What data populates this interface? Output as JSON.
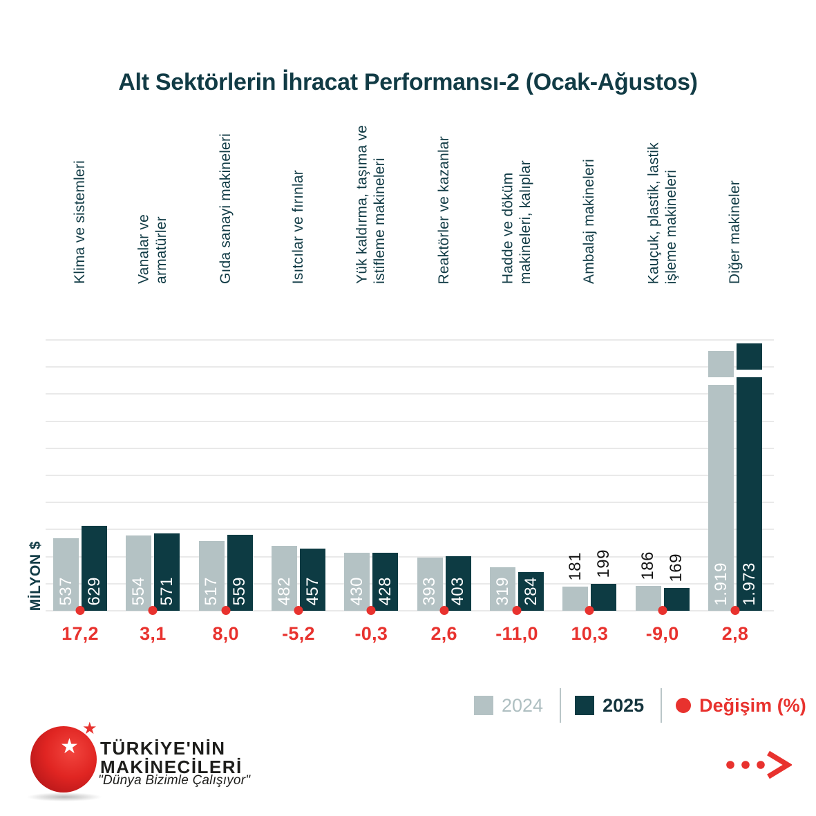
{
  "title": "Alt Sektörlerin İhracat Performansı-2 (Ocak-Ağustos)",
  "legend": {
    "items": [
      {
        "label": "2024",
        "marker": "square",
        "color": "#b4c2c4"
      },
      {
        "label": "2025",
        "marker": "square",
        "color": "#0d3b43"
      },
      {
        "label": "Değişim (%)",
        "marker": "dot",
        "color": "#e8322e"
      }
    ]
  },
  "chart_data": {
    "type": "bar",
    "title": "Alt Sektörlerin İhracat Performansı-2 (Ocak-Ağustos)",
    "xlabel": "",
    "ylabel": "MİLYON $",
    "ylim": [
      0,
      2000
    ],
    "gridline_step": 200,
    "grid": true,
    "legend_position": "bottom-right",
    "categories": [
      "Klima ve sistemleri",
      "Vanalar ve\narmatürler",
      "Gıda sanayi makineleri",
      "Isıtcılar ve fırınlar",
      "Yük kaldırma, taşıma ve\nistifleme makineleri",
      "Reaktörler ve kazanlar",
      "Hadde ve döküm\nmakineleri, kalıplar",
      "Ambalaj makineleri",
      "Kauçuk, plastik, lastik\nişleme makineleri",
      "Diğer makineler"
    ],
    "series": [
      {
        "name": "2024",
        "color": "#b4c2c4",
        "values": [
          537,
          554,
          517,
          482,
          430,
          393,
          319,
          181,
          186,
          1919
        ],
        "value_labels": [
          "537",
          "554",
          "517",
          "482",
          "430",
          "393",
          "319",
          "181",
          "186",
          "1.919"
        ]
      },
      {
        "name": "2025",
        "color": "#0d3b43",
        "values": [
          629,
          571,
          559,
          457,
          428,
          403,
          284,
          199,
          169,
          1973
        ],
        "value_labels": [
          "629",
          "571",
          "559",
          "457",
          "428",
          "403",
          "284",
          "199",
          "169",
          "1.973"
        ]
      }
    ],
    "change_series": {
      "name": "Değişim (%)",
      "color": "#e8322e",
      "values": [
        17.2,
        3.1,
        8.0,
        -5.2,
        -0.3,
        2.6,
        -11.0,
        10.3,
        -9.0,
        2.8
      ],
      "labels": [
        "17,2",
        "3,1",
        "8,0",
        "-5,2",
        "-0,3",
        "2,6",
        "-11,0",
        "10,3",
        "-9,0",
        "2,8"
      ]
    },
    "axis_break": {
      "category": "Diğer makineler",
      "style": "white gap near bar tops"
    }
  },
  "footer": {
    "logo": {
      "line1": "TÜRKİYE'NİN",
      "line2": "MAKİNECİLERİ",
      "slogan": "\"Dünya Bizimle Çalışıyor\"",
      "white_star": "★",
      "red_star": "★"
    }
  },
  "colors": {
    "ink": "#113b45",
    "bar_2024": "#b4c2c4",
    "bar_2025": "#0d3b43",
    "accent_red": "#e8322e",
    "gridline": "#e9e9e9",
    "legend_gray_text": "#aebfc1"
  }
}
